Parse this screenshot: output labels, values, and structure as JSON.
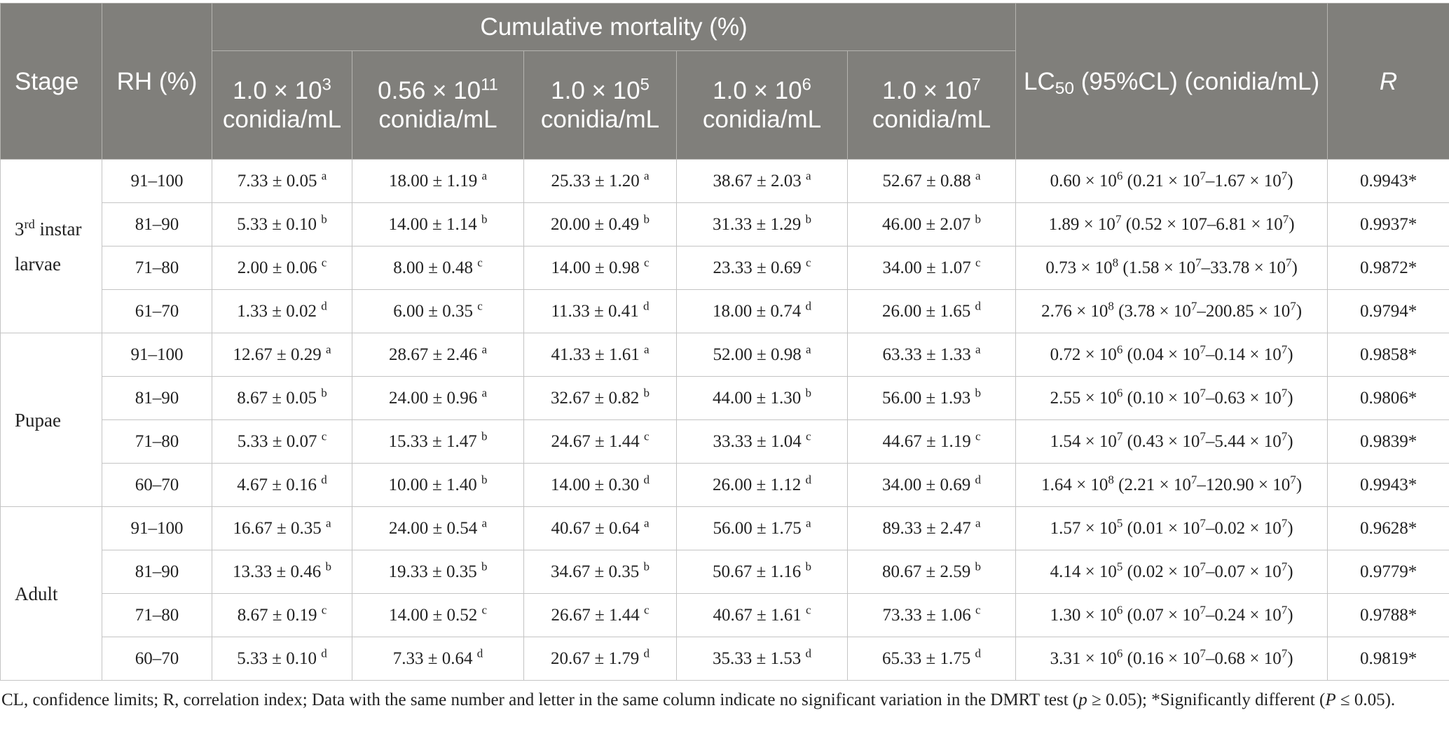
{
  "table": {
    "headers": {
      "stage": "Stage",
      "rh": "RH (%)",
      "group": "Cumulative mortality (%)",
      "concentrations": [
        {
          "mant": "1.0",
          "exp": "3",
          "unit": "conidia/mL"
        },
        {
          "mant": "0.56",
          "exp": "11",
          "unit": "conidia/mL"
        },
        {
          "mant": "1.0",
          "exp": "5",
          "unit": "conidia/mL"
        },
        {
          "mant": "1.0",
          "exp": "6",
          "unit": "conidia/mL"
        },
        {
          "mant": "1.0",
          "exp": "7",
          "unit": "conidia/mL"
        }
      ],
      "lc50_pre": "LC",
      "lc50_sub": "50",
      "lc50_post": " (95%CL) (conidia/mL)",
      "r": "R"
    },
    "groups": [
      {
        "stage": "3",
        "stage_sup": "rd",
        "stage_rest": " instar larvae",
        "rows": [
          {
            "rh": "91–100",
            "cells": [
              [
                "7.33 ± 0.05",
                "a"
              ],
              [
                "18.00 ± 1.19",
                "a"
              ],
              [
                "25.33 ± 1.20",
                "a"
              ],
              [
                "38.67 ± 2.03",
                "a"
              ],
              [
                "52.67 ± 0.88",
                "a"
              ]
            ],
            "lc50": [
              [
                "0.60 × 10",
                "6"
              ],
              [
                " (0.21 × 10",
                "7"
              ],
              [
                "–1.67 × 10",
                "7"
              ],
              [
                ")",
                ""
              ]
            ],
            "r": "0.9943*"
          },
          {
            "rh": "81–90",
            "cells": [
              [
                "5.33 ± 0.10",
                "b"
              ],
              [
                "14.00 ± 1.14",
                "b"
              ],
              [
                "20.00 ± 0.49",
                "b"
              ],
              [
                "31.33 ± 1.29",
                "b"
              ],
              [
                "46.00 ± 2.07",
                "b"
              ]
            ],
            "lc50": [
              [
                "1.89 × 10",
                "7"
              ],
              [
                " (0.52 × 107–6.81 × 10",
                "7"
              ],
              [
                ")",
                ""
              ]
            ],
            "r": "0.9937*"
          },
          {
            "rh": "71–80",
            "cells": [
              [
                "2.00 ± 0.06",
                "c"
              ],
              [
                "8.00 ± 0.48",
                "c"
              ],
              [
                "14.00 ± 0.98",
                "c"
              ],
              [
                "23.33 ± 0.69",
                "c"
              ],
              [
                "34.00 ± 1.07",
                "c"
              ]
            ],
            "lc50": [
              [
                "0.73 × 10",
                "8"
              ],
              [
                " (1.58 × 10",
                "7"
              ],
              [
                "–33.78 × 10",
                "7"
              ],
              [
                ")",
                ""
              ]
            ],
            "r": "0.9872*"
          },
          {
            "rh": "61–70",
            "cells": [
              [
                "1.33 ± 0.02",
                "d"
              ],
              [
                "6.00 ± 0.35",
                "c"
              ],
              [
                "11.33 ± 0.41",
                "d"
              ],
              [
                "18.00 ± 0.74",
                "d"
              ],
              [
                "26.00 ± 1.65",
                "d"
              ]
            ],
            "lc50": [
              [
                "2.76 × 10",
                "8"
              ],
              [
                " (3.78 × 10",
                "7"
              ],
              [
                "–200.85 × 10",
                "7"
              ],
              [
                ")",
                ""
              ]
            ],
            "r": "0.9794*"
          }
        ]
      },
      {
        "stage": "Pupae",
        "stage_sup": "",
        "stage_rest": "",
        "rows": [
          {
            "rh": "91–100",
            "cells": [
              [
                "12.67 ± 0.29",
                "a"
              ],
              [
                "28.67 ± 2.46",
                "a"
              ],
              [
                "41.33 ± 1.61",
                "a"
              ],
              [
                "52.00 ± 0.98",
                "a"
              ],
              [
                "63.33 ± 1.33",
                "a"
              ]
            ],
            "lc50": [
              [
                "0.72 × 10",
                "6"
              ],
              [
                " (0.04 × 10",
                "7"
              ],
              [
                "–0.14 × 10",
                "7"
              ],
              [
                ")",
                ""
              ]
            ],
            "r": "0.9858*"
          },
          {
            "rh": "81–90",
            "cells": [
              [
                "8.67 ± 0.05",
                "b"
              ],
              [
                "24.00 ± 0.96",
                "a"
              ],
              [
                "32.67 ± 0.82",
                "b"
              ],
              [
                "44.00 ± 1.30",
                "b"
              ],
              [
                "56.00 ± 1.93",
                "b"
              ]
            ],
            "lc50": [
              [
                "2.55 × 10",
                "6"
              ],
              [
                " (0.10 × 10",
                "7"
              ],
              [
                "–0.63 × 10",
                "7"
              ],
              [
                ")",
                ""
              ]
            ],
            "r": "0.9806*"
          },
          {
            "rh": "71–80",
            "cells": [
              [
                "5.33 ± 0.07",
                "c"
              ],
              [
                "15.33 ± 1.47",
                "b"
              ],
              [
                "24.67 ± 1.44",
                "c"
              ],
              [
                "33.33 ± 1.04",
                "c"
              ],
              [
                "44.67 ± 1.19",
                "c"
              ]
            ],
            "lc50": [
              [
                "1.54 × 10",
                "7"
              ],
              [
                " (0.43 × 10",
                "7"
              ],
              [
                "–5.44 × 10",
                "7"
              ],
              [
                ")",
                ""
              ]
            ],
            "r": "0.9839*"
          },
          {
            "rh": "60–70",
            "cells": [
              [
                "4.67 ± 0.16",
                "d"
              ],
              [
                "10.00 ± 1.40",
                "b"
              ],
              [
                "14.00 ± 0.30",
                "d"
              ],
              [
                "26.00 ± 1.12",
                "d"
              ],
              [
                "34.00 ± 0.69",
                "d"
              ]
            ],
            "lc50": [
              [
                "1.64 × 10",
                "8"
              ],
              [
                " (2.21 × 10",
                "7"
              ],
              [
                "–120.90 × 10",
                "7"
              ],
              [
                ")",
                ""
              ]
            ],
            "r": "0.9943*"
          }
        ]
      },
      {
        "stage": "Adult",
        "stage_sup": "",
        "stage_rest": "",
        "rows": [
          {
            "rh": "91–100",
            "cells": [
              [
                "16.67 ± 0.35",
                "a"
              ],
              [
                "24.00 ± 0.54",
                "a"
              ],
              [
                "40.67 ± 0.64",
                "a"
              ],
              [
                "56.00 ± 1.75",
                "a"
              ],
              [
                "89.33 ± 2.47",
                "a"
              ]
            ],
            "lc50": [
              [
                "1.57 × 10",
                "5"
              ],
              [
                " (0.01 × 10",
                "7"
              ],
              [
                "–0.02 × 10",
                "7"
              ],
              [
                ")",
                ""
              ]
            ],
            "r": "0.9628*"
          },
          {
            "rh": "81–90",
            "cells": [
              [
                "13.33 ± 0.46",
                "b"
              ],
              [
                "19.33 ± 0.35",
                "b"
              ],
              [
                "34.67 ± 0.35",
                "b"
              ],
              [
                "50.67 ± 1.16",
                "b"
              ],
              [
                "80.67 ± 2.59",
                "b"
              ]
            ],
            "lc50": [
              [
                "4.14 × 10",
                "5"
              ],
              [
                " (0.02 × 10",
                "7"
              ],
              [
                "–0.07 × 10",
                "7"
              ],
              [
                ")",
                ""
              ]
            ],
            "r": "0.9779*"
          },
          {
            "rh": "71–80",
            "cells": [
              [
                "8.67 ± 0.19",
                "c"
              ],
              [
                "14.00 ± 0.52",
                "c"
              ],
              [
                "26.67 ± 1.44",
                "c"
              ],
              [
                "40.67 ± 1.61",
                "c"
              ],
              [
                "73.33 ± 1.06",
                "c"
              ]
            ],
            "lc50": [
              [
                "1.30 × 10",
                "6"
              ],
              [
                " (0.07 × 10",
                "7"
              ],
              [
                "–0.24 × 10",
                "7"
              ],
              [
                ")",
                ""
              ]
            ],
            "r": "0.9788*"
          },
          {
            "rh": "60–70",
            "cells": [
              [
                "5.33 ± 0.10",
                "d"
              ],
              [
                "7.33 ± 0.64",
                "d"
              ],
              [
                "20.67 ± 1.79",
                "d"
              ],
              [
                "35.33 ± 1.53",
                "d"
              ],
              [
                "65.33 ± 1.75",
                "d"
              ]
            ],
            "lc50": [
              [
                "3.31 × 10",
                "6"
              ],
              [
                " (0.16 × 10",
                "7"
              ],
              [
                "–0.68 × 10",
                "7"
              ],
              [
                ")",
                ""
              ]
            ],
            "r": "0.9819*"
          }
        ]
      }
    ]
  },
  "footnote": {
    "part1": "CL, confidence limits; R, correlation index; Data with the same number and letter in the same column indicate no significant variation in the DMRT test (",
    "p1": "p",
    "part2": " ≥ 0.05); *Significantly different (",
    "p2": "P",
    "part3": " ≤ 0.05)."
  }
}
